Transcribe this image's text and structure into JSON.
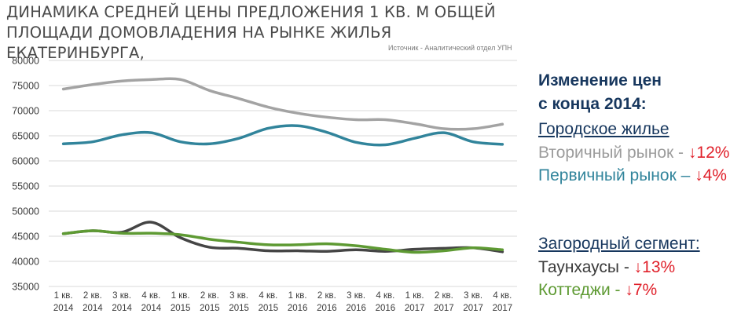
{
  "title_line1": "ДИНАМИКА СРЕДНЕЙ ЦЕНЫ ПРЕДЛОЖЕНИЯ  1 КВ. М ОБЩЕЙ",
  "title_line2": "ПЛОЩАДИ ДОМОВЛАДЕНИЯ НА РЫНКЕ ЖИЛЬЯ ЕКАТЕРИНБУРГА,",
  "source": "Источник - Аналитический отдел УПН",
  "legend_panel": {
    "heading_line1": "Изменение цен",
    "heading_line2": "с конца 2014:",
    "urban_title": "Городское жилье",
    "secondary_label": "Вторичный рынок - ",
    "secondary_change": "↓12%",
    "primary_label": "Первичный рынок – ",
    "primary_change": "↓4%",
    "suburban_title": "Загородный сегмент:",
    "townhouse_label": "Таунхаусы  - ",
    "townhouse_change": "↓13%",
    "cottage_label": "Коттеджи - ",
    "cottage_change": "↓7%"
  },
  "chart_data": {
    "type": "line",
    "title": "ДИНАМИКА СРЕДНЕЙ ЦЕНЫ ПРЕДЛОЖЕНИЯ 1 КВ. М ОБЩЕЙ ПЛОЩАДИ ДОМОВЛАДЕНИЯ НА РЫНКЕ ЖИЛЬЯ ЕКАТЕРИНБУРГА,",
    "ylim": [
      35000,
      80000
    ],
    "yticks": [
      35000,
      40000,
      45000,
      50000,
      55000,
      60000,
      65000,
      70000,
      75000,
      80000
    ],
    "grid": true,
    "categories": [
      [
        "1 кв.",
        "2014"
      ],
      [
        "2 кв.",
        "2014"
      ],
      [
        "3 кв.",
        "2014"
      ],
      [
        "4 кв.",
        "2014"
      ],
      [
        "1 кв.",
        "2015"
      ],
      [
        "2 кв.",
        "2015"
      ],
      [
        "3 кв.",
        "2015"
      ],
      [
        "4 кв.",
        "2015"
      ],
      [
        "1 кв.",
        "2016"
      ],
      [
        "2 кв.",
        "2016"
      ],
      [
        "3 кв.",
        "2016"
      ],
      [
        "4 кв.",
        "2016"
      ],
      [
        "1 кв.",
        "2017"
      ],
      [
        "2 кв.",
        "2017"
      ],
      [
        "3 кв.",
        "2017"
      ],
      [
        "4 кв.",
        "2017"
      ]
    ],
    "series": [
      {
        "name": "Вторичный рынок",
        "color": "#a3a3a3",
        "values": [
          74300,
          75200,
          75900,
          76200,
          76200,
          74000,
          72400,
          70700,
          69500,
          68700,
          68200,
          68200,
          67400,
          66400,
          66400,
          67300
        ]
      },
      {
        "name": "Первичный рынок",
        "color": "#31849b",
        "values": [
          63400,
          63800,
          65200,
          65600,
          63800,
          63400,
          64500,
          66500,
          67000,
          65700,
          63700,
          63200,
          64500,
          65600,
          63800,
          63300
        ]
      },
      {
        "name": "Таунхаусы",
        "color": "#454545",
        "values": [
          45500,
          46100,
          45800,
          47800,
          44700,
          42800,
          42600,
          42100,
          42100,
          42000,
          42300,
          42000,
          42400,
          42600,
          42700,
          41900
        ]
      },
      {
        "name": "Коттеджи",
        "color": "#5e9a33",
        "values": [
          45500,
          46100,
          45600,
          45600,
          45300,
          44400,
          43800,
          43300,
          43300,
          43500,
          43100,
          42400,
          41800,
          42100,
          42700,
          42300
        ]
      }
    ]
  }
}
